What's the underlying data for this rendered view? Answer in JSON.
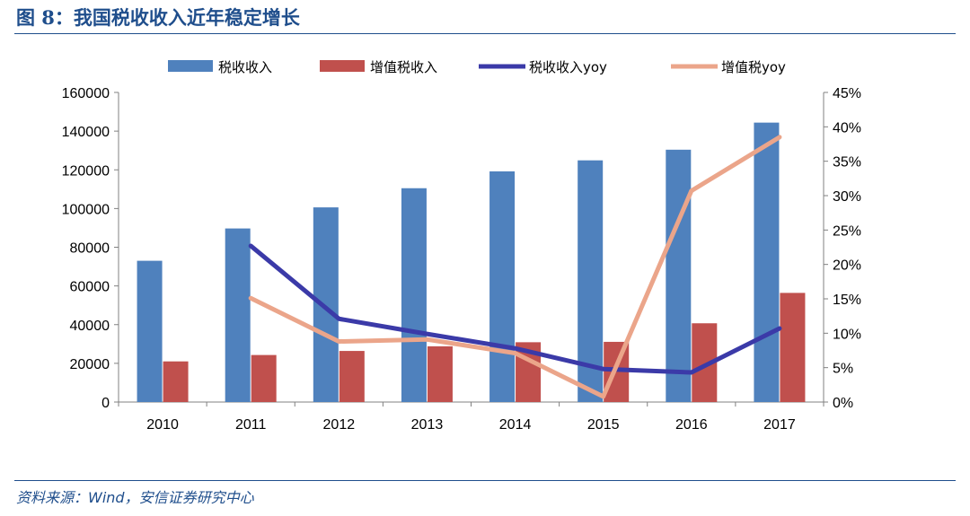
{
  "header": {
    "title": "图 8：我国税收收入近年稳定增长"
  },
  "footer": {
    "source": "资料来源：Wind，安信证券研究中心"
  },
  "colors": {
    "tax_bar": "#4f81bd",
    "vat_bar": "#c0504d",
    "tax_yoy_line": "#3b3aa8",
    "vat_yoy_line": "#eba58a",
    "header_blue": "#1f4e8c"
  },
  "chart_data": {
    "type": "bar",
    "categories": [
      "2010",
      "2011",
      "2012",
      "2013",
      "2014",
      "2015",
      "2016",
      "2017"
    ],
    "series": [
      {
        "name": "税收收入",
        "type": "bar",
        "axis": "left",
        "values": [
          73000,
          89700,
          100600,
          110500,
          119200,
          124900,
          130400,
          144400
        ]
      },
      {
        "name": "增值税收入",
        "type": "bar",
        "axis": "left",
        "values": [
          21000,
          24300,
          26400,
          28800,
          30900,
          31100,
          40700,
          56400
        ]
      },
      {
        "name": "税收收入yoy",
        "type": "line",
        "axis": "right",
        "values": [
          null,
          0.227,
          0.121,
          0.099,
          0.078,
          0.048,
          0.043,
          0.107
        ]
      },
      {
        "name": "增值税yoy",
        "type": "line",
        "axis": "right",
        "values": [
          null,
          0.151,
          0.088,
          0.091,
          0.071,
          0.008,
          0.307,
          0.385
        ]
      }
    ],
    "y_left": {
      "min": 0,
      "max": 160000,
      "ticks": [
        "0",
        "20000",
        "40000",
        "60000",
        "80000",
        "100000",
        "120000",
        "140000",
        "160000"
      ]
    },
    "y_right": {
      "min": 0,
      "max": 0.45,
      "ticks": [
        "0%",
        "5%",
        "10%",
        "15%",
        "20%",
        "25%",
        "30%",
        "35%",
        "40%",
        "45%"
      ]
    },
    "legend": {
      "position": "top",
      "items": [
        "税收收入",
        "增值税收入",
        "税收收入yoy",
        "增值税yoy"
      ]
    },
    "grid": false
  }
}
